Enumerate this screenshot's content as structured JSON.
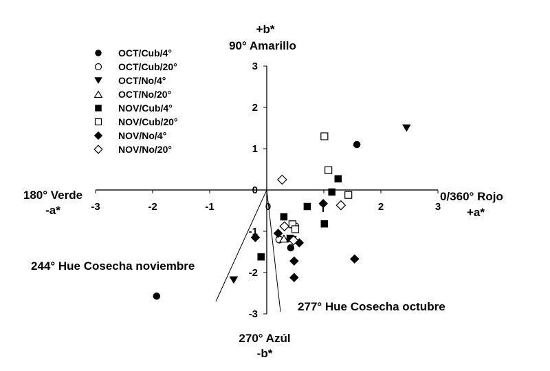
{
  "chart_data": {
    "type": "scatter",
    "title": "",
    "xlabel": "a*",
    "ylabel": "b*",
    "xlim": [
      -3,
      3
    ],
    "ylim": [
      -3,
      3
    ],
    "grid": false,
    "legend_position": "upper-left",
    "x_ticks": [
      "-3",
      "-2",
      "-1",
      "0",
      "2",
      "3"
    ],
    "y_ticks": [
      "3",
      "2",
      "1",
      "0",
      "-1",
      "-2",
      "-3"
    ],
    "annotations": {
      "top_axis_symbol": "+b*",
      "top_axis_label": "90° Amarillo",
      "left_axis_label": "180° Verde",
      "left_axis_symbol": "-a*",
      "right_axis_label": "0/360° Rojo",
      "right_axis_symbol": "+a*",
      "bottom_axis_label": "270° Azúl",
      "bottom_axis_symbol": "-b*",
      "hue_nov_label": "244° Hue Cosecha noviembre",
      "hue_oct_label": "277° Hue Cosecha octubre"
    },
    "hue_lines": [
      {
        "name": "244° Hue Cosecha noviembre",
        "angle_deg": 244,
        "end": [
          -0.89,
          -2.7
        ]
      },
      {
        "name": "277° Hue Cosecha octubre",
        "angle_deg": 277,
        "end": [
          0.24,
          -2.95
        ]
      }
    ],
    "series": [
      {
        "name": "OCT/Cub/4°",
        "marker": "circle",
        "filled": true,
        "points": [
          [
            1.58,
            1.1
          ],
          [
            -1.93,
            -2.57
          ],
          [
            0.42,
            -1.4
          ]
        ]
      },
      {
        "name": "OCT/Cub/20°",
        "marker": "circle",
        "filled": false,
        "points": [
          [
            0.22,
            -1.2
          ],
          [
            0.5,
            -0.88
          ]
        ]
      },
      {
        "name": "OCT/No/4°",
        "marker": "triangle-down",
        "filled": true,
        "points": [
          [
            2.45,
            1.5
          ],
          [
            -0.58,
            -2.18
          ],
          [
            0.45,
            -1.2
          ]
        ]
      },
      {
        "name": "OCT/No/20°",
        "marker": "triangle-up",
        "filled": false,
        "points": [
          [
            0.3,
            -1.18
          ]
        ]
      },
      {
        "name": "NOV/Cub/4°",
        "marker": "square",
        "filled": true,
        "points": [
          [
            1.25,
            0.27
          ],
          [
            1.14,
            -0.05
          ],
          [
            0.71,
            -0.4
          ],
          [
            1.01,
            -0.82
          ],
          [
            0.3,
            -0.65
          ],
          [
            -0.1,
            -1.62
          ],
          [
            0.41,
            -1.17
          ]
        ]
      },
      {
        "name": "NOV/Cub/20°",
        "marker": "square",
        "filled": false,
        "points": [
          [
            1.01,
            1.3
          ],
          [
            1.08,
            0.48
          ],
          [
            1.43,
            -0.12
          ],
          [
            0.45,
            -0.83
          ],
          [
            0.5,
            -0.95
          ]
        ]
      },
      {
        "name": "NOV/No/4°",
        "marker": "diamond",
        "filled": true,
        "points": [
          [
            0.99,
            -0.33
          ],
          [
            -0.2,
            -1.15
          ],
          [
            0.2,
            -1.05
          ],
          [
            0.57,
            -1.28
          ],
          [
            0.48,
            -1.72
          ],
          [
            0.48,
            -2.12
          ],
          [
            1.54,
            -1.67
          ]
        ]
      },
      {
        "name": "NOV/No/20°",
        "marker": "diamond",
        "filled": false,
        "points": [
          [
            0.27,
            0.25
          ],
          [
            1.3,
            -0.37
          ],
          [
            0.31,
            -0.88
          ],
          [
            0.47,
            -1.22
          ]
        ]
      }
    ]
  },
  "legend": {
    "items": [
      {
        "label": "OCT/Cub/4°"
      },
      {
        "label": "OCT/Cub/20°"
      },
      {
        "label": "OCT/No/4°"
      },
      {
        "label": "OCT/No/20°"
      },
      {
        "label": "NOV/Cub/4°"
      },
      {
        "label": "NOV/Cub/20°"
      },
      {
        "label": "NOV/No/4°"
      },
      {
        "label": "NOV/No/20°"
      }
    ]
  }
}
